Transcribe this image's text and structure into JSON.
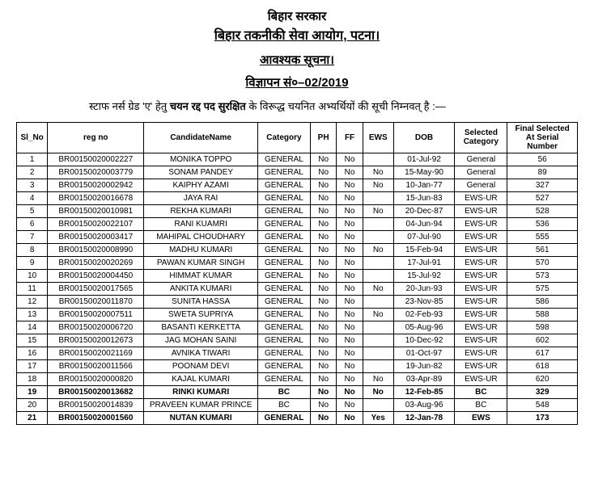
{
  "header": {
    "line1": "बिहार सरकार",
    "line2": "बिहार तकनीकी सेवा आयोग, पटना।",
    "line3": "आवश्यक सूचना।",
    "line4": "विज्ञापन सं०–02/2019"
  },
  "intro": {
    "pre": "स्टाफ नर्स ग्रेड 'ए' हेतु ",
    "bold": "चयन रद्द पद सुरक्षित",
    "post": " के विरूद्ध चयनित अभ्यर्थियों की सूची निम्नवत् है :—"
  },
  "columns": [
    "Sl_No",
    "reg no",
    "CandidateName",
    "Category",
    "PH",
    "FF",
    "EWS",
    "DOB",
    "Selected Category",
    "Final Selected At Serial Number"
  ],
  "rows": [
    {
      "sl": "1",
      "reg": "BR00150020002227",
      "name": "MONIKA TOPPO",
      "cat": "GENERAL",
      "ph": "No",
      "ff": "No",
      "ews": "",
      "dob": "01-Jul-92",
      "selcat": "General",
      "final": "56",
      "bold": false
    },
    {
      "sl": "2",
      "reg": "BR00150020003779",
      "name": "SONAM PANDEY",
      "cat": "GENERAL",
      "ph": "No",
      "ff": "No",
      "ews": "No",
      "dob": "15-May-90",
      "selcat": "General",
      "final": "89",
      "bold": false
    },
    {
      "sl": "3",
      "reg": "BR00150020002942",
      "name": "KAIPHY AZAMI",
      "cat": "GENERAL",
      "ph": "No",
      "ff": "No",
      "ews": "No",
      "dob": "10-Jan-77",
      "selcat": "General",
      "final": "327",
      "bold": false
    },
    {
      "sl": "4",
      "reg": "BR00150020016678",
      "name": "JAYA RAI",
      "cat": "GENERAL",
      "ph": "No",
      "ff": "No",
      "ews": "",
      "dob": "15-Jun-83",
      "selcat": "EWS-UR",
      "final": "527",
      "bold": false
    },
    {
      "sl": "5",
      "reg": "BR00150020010981",
      "name": "REKHA KUMARI",
      "cat": "GENERAL",
      "ph": "No",
      "ff": "No",
      "ews": "No",
      "dob": "20-Dec-87",
      "selcat": "EWS-UR",
      "final": "528",
      "bold": false
    },
    {
      "sl": "6",
      "reg": "BR00150020022107",
      "name": "RANI KUAMRI",
      "cat": "GENERAL",
      "ph": "No",
      "ff": "No",
      "ews": "",
      "dob": "04-Jun-94",
      "selcat": "EWS-UR",
      "final": "536",
      "bold": false
    },
    {
      "sl": "7",
      "reg": "BR00150020003417",
      "name": "MAHIPAL CHOUDHARY",
      "cat": "GENERAL",
      "ph": "No",
      "ff": "No",
      "ews": "",
      "dob": "07-Jul-90",
      "selcat": "EWS-UR",
      "final": "555",
      "bold": false
    },
    {
      "sl": "8",
      "reg": "BR00150020008990",
      "name": "MADHU KUMARI",
      "cat": "GENERAL",
      "ph": "No",
      "ff": "No",
      "ews": "No",
      "dob": "15-Feb-94",
      "selcat": "EWS-UR",
      "final": "561",
      "bold": false
    },
    {
      "sl": "9",
      "reg": "BR00150020020269",
      "name": "PAWAN KUMAR SINGH",
      "cat": "GENERAL",
      "ph": "No",
      "ff": "No",
      "ews": "",
      "dob": "17-Jul-91",
      "selcat": "EWS-UR",
      "final": "570",
      "bold": false
    },
    {
      "sl": "10",
      "reg": "BR00150020004450",
      "name": "HIMMAT KUMAR",
      "cat": "GENERAL",
      "ph": "No",
      "ff": "No",
      "ews": "",
      "dob": "15-Jul-92",
      "selcat": "EWS-UR",
      "final": "573",
      "bold": false
    },
    {
      "sl": "11",
      "reg": "BR00150020017565",
      "name": "ANKITA KUMARI",
      "cat": "GENERAL",
      "ph": "No",
      "ff": "No",
      "ews": "No",
      "dob": "20-Jun-93",
      "selcat": "EWS-UR",
      "final": "575",
      "bold": false
    },
    {
      "sl": "12",
      "reg": "BR00150020011870",
      "name": "SUNITA HASSA",
      "cat": "GENERAL",
      "ph": "No",
      "ff": "No",
      "ews": "",
      "dob": "23-Nov-85",
      "selcat": "EWS-UR",
      "final": "586",
      "bold": false
    },
    {
      "sl": "13",
      "reg": "BR00150020007511",
      "name": "SWETA SUPRIYA",
      "cat": "GENERAL",
      "ph": "No",
      "ff": "No",
      "ews": "No",
      "dob": "02-Feb-93",
      "selcat": "EWS-UR",
      "final": "588",
      "bold": false
    },
    {
      "sl": "14",
      "reg": "BR00150020006720",
      "name": "BASANTI KERKETTA",
      "cat": "GENERAL",
      "ph": "No",
      "ff": "No",
      "ews": "",
      "dob": "05-Aug-96",
      "selcat": "EWS-UR",
      "final": "598",
      "bold": false
    },
    {
      "sl": "15",
      "reg": "BR00150020012673",
      "name": "JAG MOHAN SAINI",
      "cat": "GENERAL",
      "ph": "No",
      "ff": "No",
      "ews": "",
      "dob": "10-Dec-92",
      "selcat": "EWS-UR",
      "final": "602",
      "bold": false
    },
    {
      "sl": "16",
      "reg": "BR00150020021169",
      "name": "AVNIKA TIWARI",
      "cat": "GENERAL",
      "ph": "No",
      "ff": "No",
      "ews": "",
      "dob": "01-Oct-97",
      "selcat": "EWS-UR",
      "final": "617",
      "bold": false
    },
    {
      "sl": "17",
      "reg": "BR00150020011566",
      "name": "POONAM DEVI",
      "cat": "GENERAL",
      "ph": "No",
      "ff": "No",
      "ews": "",
      "dob": "19-Jun-82",
      "selcat": "EWS-UR",
      "final": "618",
      "bold": false
    },
    {
      "sl": "18",
      "reg": "BR00150020000820",
      "name": "KAJAL KUMARI",
      "cat": "GENERAL",
      "ph": "No",
      "ff": "No",
      "ews": "No",
      "dob": "03-Apr-89",
      "selcat": "EWS-UR",
      "final": "620",
      "bold": false
    },
    {
      "sl": "19",
      "reg": "BR00150020013682",
      "name": "RINKI KUMARI",
      "cat": "BC",
      "ph": "No",
      "ff": "No",
      "ews": "No",
      "dob": "12-Feb-85",
      "selcat": "BC",
      "final": "329",
      "bold": true
    },
    {
      "sl": "20",
      "reg": "BR00150020014839",
      "name": "PRAVEEN KUMAR PRINCE",
      "cat": "BC",
      "ph": "No",
      "ff": "No",
      "ews": "",
      "dob": "03-Aug-96",
      "selcat": "BC",
      "final": "548",
      "bold": false
    },
    {
      "sl": "21",
      "reg": "BR00150020001560",
      "name": "NUTAN KUMARI",
      "cat": "GENERAL",
      "ph": "No",
      "ff": "No",
      "ews": "Yes",
      "dob": "12-Jan-78",
      "selcat": "EWS",
      "final": "173",
      "bold": true
    }
  ]
}
